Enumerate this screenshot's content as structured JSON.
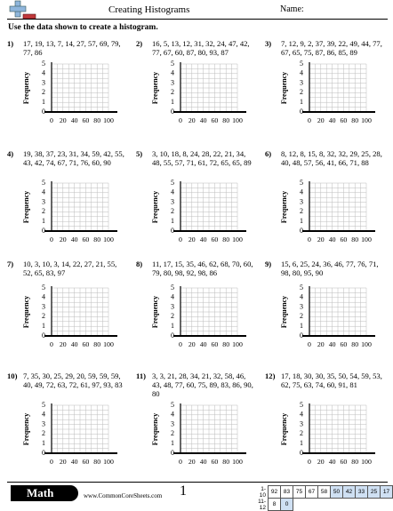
{
  "header": {
    "title": "Creating Histograms",
    "name_label": "Name:"
  },
  "instructions": "Use the data shown to create a histogram.",
  "axis": {
    "y_label": "Frequency",
    "yticks": [
      0,
      1,
      2,
      3,
      4,
      5
    ],
    "xticks": [
      0,
      20,
      40,
      60,
      80,
      100
    ]
  },
  "problems": [
    {
      "number": "1)",
      "data": "17, 19, 13, 7, 14, 27, 57, 69, 79, 77, 86"
    },
    {
      "number": "2)",
      "data": "16, 5, 13, 12, 31, 32, 24, 47, 42, 77, 67, 60, 87, 80, 93, 87"
    },
    {
      "number": "3)",
      "data": "7, 12, 9, 2, 37, 39, 22, 49, 44, 77, 67, 65, 75, 87, 86, 85, 89"
    },
    {
      "number": "4)",
      "data": "19, 38, 37, 23, 31, 34, 59, 42, 55, 43, 42, 74, 67, 71, 76, 60, 90"
    },
    {
      "number": "5)",
      "data": "3, 10, 18, 8, 24, 28, 22, 21, 34, 48, 55, 57, 71, 61, 72, 65, 65, 89"
    },
    {
      "number": "6)",
      "data": "8, 12, 8, 15, 8, 32, 32, 29, 25, 28, 40, 48, 57, 56, 41, 66, 71, 88"
    },
    {
      "number": "7)",
      "data": "10, 3, 10, 3, 14, 22, 27, 21, 55, 52, 65, 83, 97"
    },
    {
      "number": "8)",
      "data": "11, 17, 15, 35, 46, 62, 68, 70, 60, 79, 80, 98, 92, 98, 86"
    },
    {
      "number": "9)",
      "data": "15, 6, 25, 24, 36, 46, 77, 76, 71, 98, 80, 95, 90"
    },
    {
      "number": "10)",
      "data": "7, 35, 30, 25, 29, 20, 59, 59, 59, 40, 49, 72, 63, 72, 61, 97, 93, 83"
    },
    {
      "number": "11)",
      "data": "3, 3, 21, 28, 34, 21, 32, 58, 46, 43, 48, 77, 60, 75, 89, 83, 86, 90, 80"
    },
    {
      "number": "12)",
      "data": "17, 18, 30, 30, 35, 50, 54, 59, 53, 62, 75, 63, 74, 60, 91, 81"
    }
  ],
  "footer": {
    "brand": "Math",
    "url": "www.CommonCoreSheets.com",
    "page": "1",
    "score_rows": [
      {
        "range": "1-10",
        "scores": [
          "92",
          "83",
          "75",
          "67",
          "58",
          "50",
          "42",
          "33",
          "25",
          "17"
        ]
      },
      {
        "range": "11-12",
        "scores": [
          "8",
          "0"
        ]
      }
    ]
  }
}
